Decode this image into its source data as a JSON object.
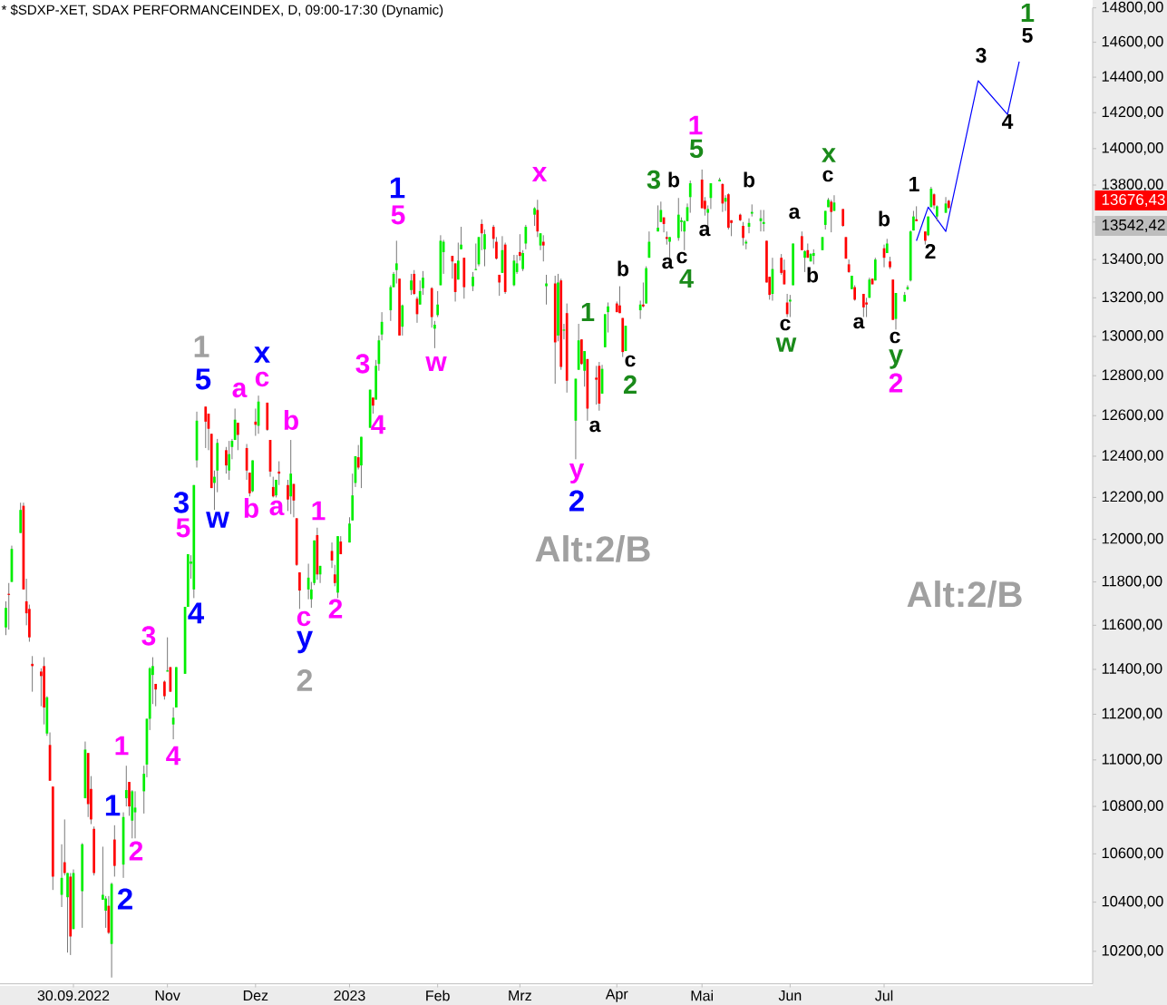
{
  "chart_data": {
    "type": "candlestick",
    "title": "* $SDXP-XET, SDAX PERFORMANCEINDEX, D, 09:00-17:30 (Dynamic)",
    "log": true,
    "xlim": [
      "2022-09-05",
      "2023-09-12"
    ],
    "xticks": [
      {
        "value": "2022-09-30",
        "label": "30.09.2022"
      },
      {
        "value": "2022-11-01",
        "label": "Nov"
      },
      {
        "value": "2022-12-01",
        "label": "Dez"
      },
      {
        "value": "2023-01-02",
        "label": "2023"
      },
      {
        "value": "2023-02-01",
        "label": "Feb"
      },
      {
        "value": "2023-03-01",
        "label": "Mrz"
      },
      {
        "value": "2023-04-03",
        "label": "Apr"
      },
      {
        "value": "2023-05-02",
        "label": "Mai"
      },
      {
        "value": "2023-06-01",
        "label": "Jun"
      },
      {
        "value": "2023-07-03",
        "label": "Jul"
      }
    ],
    "ylim": [
      10070,
      14800
    ],
    "yticks": [
      {
        "value": 10200,
        "label": "10200,00"
      },
      {
        "value": 10400,
        "label": "10400,00"
      },
      {
        "value": 10600,
        "label": "10600,00"
      },
      {
        "value": 10800,
        "label": "10800,00"
      },
      {
        "value": 11000,
        "label": "11000,00"
      },
      {
        "value": 11200,
        "label": "11200,00"
      },
      {
        "value": 11400,
        "label": "11400,00"
      },
      {
        "value": 11600,
        "label": "11600,00"
      },
      {
        "value": 11800,
        "label": "11800,00"
      },
      {
        "value": 12000,
        "label": "12000,00"
      },
      {
        "value": 12200,
        "label": "12200,00"
      },
      {
        "value": 12400,
        "label": "12400,00"
      },
      {
        "value": 12600,
        "label": "12600,00"
      },
      {
        "value": 12800,
        "label": "12800,00"
      },
      {
        "value": 13000,
        "label": "13000,00"
      },
      {
        "value": 13200,
        "label": "13200,00"
      },
      {
        "value": 13400,
        "label": "13400,00"
      },
      {
        "value": 13600,
        "label": null
      },
      {
        "value": 13800,
        "label": "13800,00"
      },
      {
        "value": 14000,
        "label": "14000,00"
      },
      {
        "value": 14200,
        "label": "14200,00"
      },
      {
        "value": 14400,
        "label": "14400,00"
      },
      {
        "value": 14600,
        "label": "14600,00"
      },
      {
        "value": 14800,
        "label": "14800,00"
      }
    ],
    "x": [
      "2022-09-07",
      "2022-09-08",
      "2022-09-09",
      "2022-09-12",
      "2022-09-13",
      "2022-09-14",
      "2022-09-15",
      "2022-09-16",
      "2022-09-19",
      "2022-09-20",
      "2022-09-21",
      "2022-09-22",
      "2022-09-23",
      "2022-09-26",
      "2022-09-27",
      "2022-09-28",
      "2022-09-29",
      "2022-09-30",
      "2022-10-03",
      "2022-10-04",
      "2022-10-05",
      "2022-10-06",
      "2022-10-07",
      "2022-10-10",
      "2022-10-11",
      "2022-10-12",
      "2022-10-13",
      "2022-10-14",
      "2022-10-17",
      "2022-10-18",
      "2022-10-19",
      "2022-10-20",
      "2022-10-21",
      "2022-10-24",
      "2022-10-25",
      "2022-10-26",
      "2022-10-27",
      "2022-10-28",
      "2022-10-31",
      "2022-11-01",
      "2022-11-02",
      "2022-11-03",
      "2022-11-04",
      "2022-11-07",
      "2022-11-08",
      "2022-11-09",
      "2022-11-10",
      "2022-11-11",
      "2022-11-14",
      "2022-11-15",
      "2022-11-16",
      "2022-11-17",
      "2022-11-18",
      "2022-11-21",
      "2022-11-22",
      "2022-11-23",
      "2022-11-24",
      "2022-11-25",
      "2022-11-28",
      "2022-11-29",
      "2022-11-30",
      "2022-12-01",
      "2022-12-02",
      "2022-12-05",
      "2022-12-06",
      "2022-12-07",
      "2022-12-08",
      "2022-12-09",
      "2022-12-12",
      "2022-12-13",
      "2022-12-14",
      "2022-12-15",
      "2022-12-16",
      "2022-12-19",
      "2022-12-20",
      "2022-12-21",
      "2022-12-22",
      "2022-12-23",
      "2022-12-27",
      "2022-12-28",
      "2022-12-29",
      "2022-12-30",
      "2023-01-02",
      "2023-01-03",
      "2023-01-04",
      "2023-01-05",
      "2023-01-06",
      "2023-01-09",
      "2023-01-10",
      "2023-01-11",
      "2023-01-12",
      "2023-01-13",
      "2023-01-16",
      "2023-01-17",
      "2023-01-18",
      "2023-01-19",
      "2023-01-20",
      "2023-01-23",
      "2023-01-24",
      "2023-01-25",
      "2023-01-26",
      "2023-01-27",
      "2023-01-30",
      "2023-01-31",
      "2023-02-01",
      "2023-02-02",
      "2023-02-03",
      "2023-02-06",
      "2023-02-07",
      "2023-02-08",
      "2023-02-09",
      "2023-02-10",
      "2023-02-13",
      "2023-02-14",
      "2023-02-15",
      "2023-02-16",
      "2023-02-17",
      "2023-02-20",
      "2023-02-21",
      "2023-02-22",
      "2023-02-23",
      "2023-02-24",
      "2023-02-27",
      "2023-02-28",
      "2023-03-01",
      "2023-03-02",
      "2023-03-03",
      "2023-03-06",
      "2023-03-07",
      "2023-03-08",
      "2023-03-09",
      "2023-03-10",
      "2023-03-13",
      "2023-03-14",
      "2023-03-15",
      "2023-03-16",
      "2023-03-17",
      "2023-03-20",
      "2023-03-21",
      "2023-03-22",
      "2023-03-23",
      "2023-03-24",
      "2023-03-27",
      "2023-03-28",
      "2023-03-29",
      "2023-03-30",
      "2023-03-31",
      "2023-04-03",
      "2023-04-04",
      "2023-04-05",
      "2023-04-06",
      "2023-04-11",
      "2023-04-12",
      "2023-04-13",
      "2023-04-14",
      "2023-04-17",
      "2023-04-18",
      "2023-04-19",
      "2023-04-20",
      "2023-04-21",
      "2023-04-24",
      "2023-04-25",
      "2023-04-26",
      "2023-04-27",
      "2023-04-28",
      "2023-05-02",
      "2023-05-03",
      "2023-05-04",
      "2023-05-05",
      "2023-05-08",
      "2023-05-09",
      "2023-05-10",
      "2023-05-11",
      "2023-05-12",
      "2023-05-15",
      "2023-05-16",
      "2023-05-17",
      "2023-05-18",
      "2023-05-19",
      "2023-05-22",
      "2023-05-23",
      "2023-05-24",
      "2023-05-25",
      "2023-05-26",
      "2023-05-29",
      "2023-05-30",
      "2023-05-31",
      "2023-06-01",
      "2023-06-02",
      "2023-06-05",
      "2023-06-06",
      "2023-06-07",
      "2023-06-08",
      "2023-06-09",
      "2023-06-12",
      "2023-06-13",
      "2023-06-14",
      "2023-06-15",
      "2023-06-16",
      "2023-06-19",
      "2023-06-20",
      "2023-06-21",
      "2023-06-22",
      "2023-06-23",
      "2023-06-26",
      "2023-06-27",
      "2023-06-28",
      "2023-06-29",
      "2023-06-30",
      "2023-07-03",
      "2023-07-04",
      "2023-07-05",
      "2023-07-06",
      "2023-07-07",
      "2023-07-10",
      "2023-07-11",
      "2023-07-12",
      "2023-07-13",
      "2023-07-14",
      "2023-07-17",
      "2023-07-18",
      "2023-07-19",
      "2023-07-20",
      "2023-07-21",
      "2023-07-24",
      "2023-07-25"
    ],
    "ohlc": [
      [
        11590,
        11710,
        11555,
        11680
      ],
      [
        11745,
        11795,
        11580,
        11740
      ],
      [
        11800,
        11970,
        11800,
        11955
      ],
      [
        12030,
        12175,
        12030,
        12140
      ],
      [
        12160,
        12175,
        11765,
        11765
      ],
      [
        11710,
        11815,
        11600,
        11655
      ],
      [
        11675,
        11695,
        11525,
        11545
      ],
      [
        11425,
        11460,
        11300,
        11415
      ],
      [
        11390,
        11405,
        11235,
        11370
      ],
      [
        11415,
        11455,
        11155,
        11230
      ],
      [
        11115,
        11280,
        11105,
        11275
      ],
      [
        11065,
        11120,
        10910,
        10910
      ],
      [
        10885,
        10885,
        10450,
        10505
      ],
      [
        10430,
        10640,
        10380,
        10500
      ],
      [
        10565,
        10745,
        10510,
        10520
      ],
      [
        10420,
        10520,
        10195,
        10520
      ],
      [
        10505,
        10520,
        10185,
        10260
      ],
      [
        10290,
        10535,
        10290,
        10520
      ],
      [
        10445,
        10645,
        10295,
        10640
      ],
      [
        10835,
        11080,
        10835,
        11045
      ],
      [
        11030,
        11030,
        10755,
        10810
      ],
      [
        10875,
        10930,
        10725,
        10745
      ],
      [
        10705,
        10715,
        10510,
        10520
      ],
      [
        10410,
        10630,
        10410,
        10430
      ],
      [
        10365,
        10425,
        10295,
        10415
      ],
      [
        10385,
        10425,
        10270,
        10275
      ],
      [
        10230,
        10480,
        10095,
        10475
      ],
      [
        10660,
        10720,
        10505,
        10550
      ],
      [
        10555,
        10775,
        10500,
        10755
      ],
      [
        10835,
        10975,
        10800,
        10870
      ],
      [
        10905,
        10905,
        10760,
        10800
      ],
      [
        10740,
        10870,
        10665,
        10865
      ],
      [
        10775,
        10865,
        10665,
        10795
      ],
      [
        10865,
        10975,
        10770,
        10940
      ],
      [
        10980,
        11180,
        10925,
        11180
      ],
      [
        11180,
        11410,
        11130,
        11405
      ],
      [
        11375,
        11455,
        11245,
        11415
      ],
      [
        11335,
        11335,
        11235,
        11310
      ],
      [
        11345,
        11350,
        11265,
        11280
      ],
      [
        11390,
        11545,
        11390,
        11395
      ],
      [
        11410,
        11410,
        11300,
        11300
      ],
      [
        11155,
        11230,
        11090,
        11185
      ],
      [
        11230,
        11410,
        11230,
        11410
      ],
      [
        11380,
        11685,
        11380,
        11685
      ],
      [
        11685,
        11930,
        11685,
        11930
      ],
      [
        11885,
        11925,
        11815,
        11895
      ],
      [
        11765,
        12260,
        11725,
        12260
      ],
      [
        12380,
        12620,
        12345,
        12575
      ],
      [
        12645,
        12645,
        12440,
        12570
      ],
      [
        12610,
        12610,
        12430,
        12535
      ],
      [
        12510,
        12510,
        12245,
        12245
      ],
      [
        12270,
        12330,
        12140,
        12300
      ],
      [
        12330,
        12485,
        12225,
        12465
      ],
      [
        12430,
        12445,
        12315,
        12355
      ],
      [
        12330,
        12475,
        12285,
        12410
      ],
      [
        12445,
        12485,
        12385,
        12475
      ],
      [
        12480,
        12635,
        12480,
        12580
      ],
      [
        12565,
        12565,
        12430,
        12505
      ],
      [
        12440,
        12460,
        12285,
        12330
      ],
      [
        12320,
        12320,
        12205,
        12220
      ],
      [
        12230,
        12380,
        12225,
        12380
      ],
      [
        12570,
        12635,
        12500,
        12555
      ],
      [
        12550,
        12700,
        12510,
        12670
      ],
      [
        12665,
        12665,
        12525,
        12530
      ],
      [
        12480,
        12480,
        12300,
        12325
      ],
      [
        12250,
        12300,
        12200,
        12205
      ],
      [
        12210,
        12285,
        12200,
        12285
      ],
      [
        12325,
        12375,
        12260,
        12315
      ],
      [
        12260,
        12285,
        12135,
        12190
      ],
      [
        12205,
        12480,
        12120,
        12315
      ],
      [
        12265,
        12265,
        12105,
        12185
      ],
      [
        12100,
        12100,
        11875,
        11880
      ],
      [
        11845,
        11845,
        11675,
        11760
      ],
      [
        11765,
        11885,
        11720,
        11820
      ],
      [
        11720,
        11800,
        11680,
        11765
      ],
      [
        11795,
        11995,
        11785,
        11995
      ],
      [
        12020,
        12055,
        11810,
        11835
      ],
      [
        11835,
        11875,
        11795,
        11875
      ],
      [
        11945,
        11985,
        11865,
        11900
      ],
      [
        11835,
        11880,
        11780,
        11795
      ],
      [
        11750,
        12015,
        11725,
        12015
      ],
      [
        11990,
        12015,
        11930,
        11930
      ],
      [
        11985,
        12105,
        11985,
        12075
      ],
      [
        12090,
        12315,
        12090,
        12210
      ],
      [
        12270,
        12400,
        12250,
        12400
      ],
      [
        12395,
        12455,
        12335,
        12345
      ],
      [
        12355,
        12495,
        12245,
        12495
      ],
      [
        12540,
        12730,
        12540,
        12730
      ],
      [
        12690,
        12690,
        12610,
        12650
      ],
      [
        12680,
        12880,
        12680,
        12850
      ],
      [
        12860,
        13005,
        12825,
        12980
      ],
      [
        13010,
        13125,
        12980,
        13075
      ],
      [
        13135,
        13265,
        13080,
        13255
      ],
      [
        13255,
        13335,
        13255,
        13325
      ],
      [
        13345,
        13500,
        13275,
        13380
      ],
      [
        13300,
        13300,
        13005,
        13005
      ],
      [
        13050,
        13165,
        13005,
        13160
      ],
      [
        13240,
        13325,
        13215,
        13290
      ],
      [
        13325,
        13345,
        13215,
        13220
      ],
      [
        13195,
        13205,
        13070,
        13115
      ],
      [
        13165,
        13290,
        13165,
        13235
      ],
      [
        13250,
        13340,
        13215,
        13305
      ],
      [
        13250,
        13255,
        13045,
        13100
      ],
      [
        13040,
        13080,
        12940,
        13060
      ],
      [
        13110,
        13235,
        13100,
        13165
      ],
      [
        13265,
        13530,
        13265,
        13500
      ],
      [
        13440,
        13505,
        13325,
        13495
      ],
      [
        13420,
        13420,
        13300,
        13390
      ],
      [
        13380,
        13380,
        13180,
        13230
      ],
      [
        13295,
        13490,
        13295,
        13395
      ],
      [
        13455,
        13575,
        13455,
        13480
      ],
      [
        13410,
        13410,
        13195,
        13255
      ],
      [
        13260,
        13335,
        13235,
        13310
      ],
      [
        13345,
        13485,
        13345,
        13350
      ],
      [
        13375,
        13520,
        13365,
        13520
      ],
      [
        13590,
        13615,
        13450,
        13540
      ],
      [
        13455,
        13560,
        13365,
        13535
      ],
      [
        13575,
        13585,
        13460,
        13510
      ],
      [
        13495,
        13520,
        13400,
        13405
      ],
      [
        13320,
        13320,
        13210,
        13280
      ],
      [
        13330,
        13525,
        13330,
        13450
      ],
      [
        13480,
        13490,
        13220,
        13230
      ],
      [
        13265,
        13425,
        13260,
        13395
      ],
      [
        13335,
        13425,
        13325,
        13380
      ],
      [
        13440,
        13535,
        13395,
        13420
      ],
      [
        13350,
        13450,
        13340,
        13435
      ],
      [
        13485,
        13585,
        13455,
        13575
      ],
      [
        13640,
        13680,
        13580,
        13675
      ],
      [
        13665,
        13720,
        13520,
        13550
      ],
      [
        13475,
        13540,
        13450,
        13540
      ],
      [
        13495,
        13530,
        13390,
        13475
      ],
      [
        13260,
        13320,
        13165,
        13275
      ],
      [
        13275,
        13315,
        12760,
        12970
      ],
      [
        13005,
        13325,
        12975,
        13280
      ],
      [
        13290,
        13300,
        12830,
        12845
      ],
      [
        13030,
        13065,
        12985,
        13035
      ],
      [
        13120,
        13170,
        12715,
        12775
      ],
      [
        12575,
        12785,
        12385,
        12785
      ],
      [
        12830,
        13065,
        12830,
        12980
      ],
      [
        12985,
        12985,
        12855,
        12860
      ],
      [
        12825,
        12925,
        12745,
        12925
      ],
      [
        12885,
        12885,
        12575,
        12635
      ],
      [
        12790,
        12850,
        12655,
        12780
      ],
      [
        12850,
        12870,
        12625,
        12660
      ],
      [
        12710,
        12855,
        12710,
        12835
      ],
      [
        12945,
        13115,
        12945,
        13115
      ],
      [
        13125,
        13175,
        13020,
        13155
      ],
      [
        13170,
        13180,
        13125,
        13125
      ],
      [
        13160,
        13260,
        13120,
        13120
      ],
      [
        13095,
        13095,
        12895,
        12920
      ],
      [
        12925,
        13055,
        12925,
        13055
      ],
      [
        13135,
        13185,
        13090,
        13165
      ],
      [
        13165,
        13280,
        13150,
        13155
      ],
      [
        13170,
        13365,
        13170,
        13355
      ],
      [
        13410,
        13550,
        13410,
        13495
      ],
      [
        13550,
        13690,
        13550,
        13570
      ],
      [
        13600,
        13710,
        13600,
        13665
      ],
      [
        13625,
        13625,
        13545,
        13590
      ],
      [
        13520,
        13550,
        13480,
        13510
      ],
      [
        13495,
        13520,
        13410,
        13520
      ],
      [
        13515,
        13730,
        13500,
        13640
      ],
      [
        13600,
        13625,
        13550,
        13610
      ],
      [
        13550,
        13610,
        13450,
        13605
      ],
      [
        13605,
        13700,
        13605,
        13680
      ],
      [
        13735,
        13825,
        13650,
        13810
      ],
      [
        13830,
        13885,
        13675,
        13675
      ],
      [
        13715,
        13735,
        13635,
        13670
      ],
      [
        13650,
        13690,
        13575,
        13670
      ],
      [
        13730,
        13810,
        13670,
        13810
      ],
      [
        13820,
        13840,
        13820,
        13830
      ],
      [
        13805,
        13810,
        13655,
        13700
      ],
      [
        13710,
        13745,
        13660,
        13730
      ],
      [
        13750,
        13755,
        13560,
        13570
      ],
      [
        13610,
        13610,
        13525,
        13595
      ],
      [
        13640,
        13645,
        13605,
        13610
      ],
      [
        13580,
        13600,
        13475,
        13515
      ],
      [
        13485,
        13505,
        13455,
        13495
      ],
      [
        13575,
        13620,
        13540,
        13595
      ],
      [
        13645,
        13695,
        13630,
        13655
      ],
      [
        13605,
        13665,
        13550,
        13620
      ],
      [
        13590,
        13665,
        13550,
        13600
      ],
      [
        13500,
        13500,
        13280,
        13280
      ],
      [
        13310,
        13310,
        13190,
        13215
      ],
      [
        13220,
        13410,
        13185,
        13350
      ],
      [
        13410,
        13430,
        13320,
        13330
      ],
      [
        13345,
        13400,
        13270,
        13270
      ],
      [
        13175,
        13220,
        13100,
        13115
      ],
      [
        13180,
        13215,
        13100,
        13190
      ],
      [
        13265,
        13485,
        13265,
        13485
      ],
      [
        13525,
        13550,
        13450,
        13450
      ],
      [
        13410,
        13450,
        13335,
        13445
      ],
      [
        13450,
        13485,
        13410,
        13410
      ],
      [
        13390,
        13435,
        13390,
        13430
      ],
      [
        13420,
        13455,
        13375,
        13435
      ],
      [
        13450,
        13520,
        13450,
        13520
      ],
      [
        13585,
        13660,
        13560,
        13660
      ],
      [
        13680,
        13730,
        13680,
        13720
      ],
      [
        13710,
        13720,
        13545,
        13655
      ],
      [
        13660,
        13745,
        13660,
        13705
      ],
      [
        13670,
        13670,
        13575,
        13580
      ],
      [
        13520,
        13520,
        13405,
        13405
      ],
      [
        13375,
        13400,
        13330,
        13335
      ],
      [
        13245,
        13315,
        13245,
        13315
      ],
      [
        13255,
        13265,
        13185,
        13190
      ],
      [
        13220,
        13220,
        13100,
        13150
      ],
      [
        13175,
        13200,
        13100,
        13165
      ],
      [
        13200,
        13305,
        13200,
        13295
      ],
      [
        13300,
        13300,
        13270,
        13270
      ],
      [
        13290,
        13410,
        13290,
        13400
      ],
      [
        13460,
        13480,
        13360,
        13410
      ],
      [
        13435,
        13510,
        13435,
        13485
      ],
      [
        13390,
        13415,
        13350,
        13360
      ],
      [
        13295,
        13295,
        13085,
        13085
      ],
      [
        13090,
        13225,
        13035,
        13225
      ],
      [
        13180,
        13230,
        13180,
        13215
      ],
      [
        13245,
        13265,
        13240,
        13255
      ],
      [
        13290,
        13555,
        13285,
        13550
      ],
      [
        13555,
        13660,
        13555,
        13630
      ],
      [
        13615,
        13685,
        13605,
        13605
      ],
      [
        13550,
        13550,
        13480,
        13500
      ],
      [
        13530,
        13630,
        13525,
        13630
      ],
      [
        13680,
        13790,
        13680,
        13780
      ],
      [
        13750,
        13755,
        13670,
        13690
      ],
      [
        13630,
        13690,
        13605,
        13685
      ],
      [
        13650,
        13735,
        13650,
        13700
      ],
      [
        13715,
        13720,
        13670,
        13676.43
      ]
    ],
    "colors": [
      "#00ee00",
      "#ff0000",
      "#00ee00",
      "#00ee00",
      "#ff0000",
      "#ff0000",
      "#ff0000",
      "#ff0000",
      "#ff0000",
      "#ff0000",
      "#00ee00",
      "#ff0000",
      "#ff0000",
      "#00ee00",
      "#ff0000",
      "#00ee00",
      "#ff0000",
      "#00ee00",
      "#00ee00",
      "#00ee00",
      "#ff0000",
      "#ff0000",
      "#ff0000",
      "#00ee00",
      "#00ee00",
      "#ff0000",
      "#00ee00",
      "#ff0000",
      "#00ee00",
      "#00ee00",
      "#ff0000",
      "#00ee00",
      "#00ee00",
      "#00ee00",
      "#00ee00",
      "#00ee00",
      "#00ee00",
      "#ff0000",
      "#ff0000",
      "#00ee00",
      "#ff0000",
      "#00ee00",
      "#00ee00",
      "#00ee00",
      "#00ee00",
      "#00ee00",
      "#00ee00",
      "#00ee00",
      "#ff0000",
      "#ff0000",
      "#ff0000",
      "#00ee00",
      "#00ee00",
      "#ff0000",
      "#00ee00",
      "#00ee00",
      "#00ee00",
      "#ff0000",
      "#ff0000",
      "#ff0000",
      "#00ee00",
      "#ff0000",
      "#00ee00",
      "#ff0000",
      "#ff0000",
      "#ff0000",
      "#00ee00",
      "#ff0000",
      "#ff0000",
      "#00ee00",
      "#ff0000",
      "#ff0000",
      "#ff0000",
      "#00ee00",
      "#00ee00",
      "#00ee00",
      "#ff0000",
      "#00ee00",
      "#ff0000",
      "#ff0000",
      "#00ee00",
      "#ff0000",
      "#00ee00",
      "#00ee00",
      "#00ee00",
      "#ff0000",
      "#00ee00",
      "#00ee00",
      "#ff0000",
      "#00ee00",
      "#00ee00",
      "#00ee00",
      "#00ee00",
      "#00ee00",
      "#00ee00",
      "#ff0000",
      "#00ee00",
      "#00ee00",
      "#ff0000",
      "#ff0000",
      "#00ee00",
      "#00ee00",
      "#ff0000",
      "#00ee00",
      "#00ee00",
      "#00ee00",
      "#00ee00",
      "#ff0000",
      "#ff0000",
      "#00ee00",
      "#00ee00",
      "#ff0000",
      "#00ee00",
      "#00ee00",
      "#00ee00",
      "#ff0000",
      "#00ee00",
      "#ff0000",
      "#ff0000",
      "#ff0000",
      "#00ee00",
      "#ff0000",
      "#00ee00",
      "#00ee00",
      "#ff0000",
      "#00ee00",
      "#00ee00",
      "#00ee00",
      "#ff0000",
      "#00ee00",
      "#ff0000",
      "#00ee00",
      "#ff0000",
      "#00ee00",
      "#ff0000",
      "#00ee00",
      "#ff0000",
      "#00ee00",
      "#00ee00",
      "#ff0000",
      "#00ee00",
      "#ff0000",
      "#ff0000",
      "#ff0000",
      "#00ee00",
      "#00ee00",
      "#00ee00",
      "#ff0000",
      "#ff0000",
      "#ff0000",
      "#00ee00",
      "#00ee00",
      "#ff0000",
      "#00ee00",
      "#00ee00",
      "#00ee00",
      "#00ee00",
      "#ff0000",
      "#ff0000",
      "#00ee00",
      "#00ee00",
      "#00ee00",
      "#00ee00",
      "#00ee00",
      "#00ee00",
      "#ff0000",
      "#ff0000",
      "#00ee00",
      "#00ee00",
      "#00ee00",
      "#ff0000",
      "#00ee00",
      "#ff0000",
      "#ff0000",
      "#ff0000",
      "#ff0000",
      "#00ee00",
      "#00ee00",
      "#00ee00",
      "#00ee00",
      "#00ee00",
      "#ff0000",
      "#ff0000",
      "#00ee00",
      "#ff0000",
      "#ff0000",
      "#ff0000",
      "#00ee00",
      "#00ee00",
      "#ff0000",
      "#00ee00",
      "#ff0000",
      "#00ee00",
      "#00ee00",
      "#00ee00",
      "#00ee00",
      "#00ee00",
      "#ff0000",
      "#00ee00",
      "#ff0000",
      "#ff0000",
      "#ff0000",
      "#00ee00",
      "#ff0000",
      "#ff0000",
      "#ff0000",
      "#00ee00",
      "#ff0000",
      "#00ee00",
      "#ff0000",
      "#00ee00",
      "#ff0000",
      "#ff0000",
      "#00ee00",
      "#00ee00",
      "#00ee00",
      "#00ee00",
      "#00ee00",
      "#ff0000",
      "#ff0000",
      "#00ee00",
      "#00ee00",
      "#ff0000",
      "#00ee00",
      "#00ee00",
      "#ff0000"
    ],
    "series": [
      {
        "type": "line",
        "color": "#0000ff",
        "x": [
          "2023-07-14",
          "2023-07-18",
          "2023-07-24",
          "2023-08-04",
          "2023-08-14",
          "2023-08-18"
        ],
        "values": [
          13500,
          13680,
          13550,
          14380,
          14190,
          14490
        ]
      }
    ],
    "annotations": [
      "1",
      "5",
      "x",
      "c",
      "a",
      "b",
      "3",
      "5",
      "w",
      "b",
      "a",
      "1",
      "c",
      "y",
      "2",
      "2",
      "4",
      "3",
      "4",
      "1",
      "1",
      "2",
      "2",
      "3",
      "4",
      "1",
      "5",
      "w",
      "x",
      "y",
      "2",
      "Alt:2/B",
      "a",
      "1",
      "b",
      "c",
      "2",
      "3",
      "b",
      "a",
      "c",
      "4",
      "a",
      "1",
      "5",
      "b",
      "a",
      "b",
      "c",
      "w",
      "x",
      "c",
      "a",
      "b",
      "c",
      "y",
      "2",
      "1",
      "2",
      "3",
      "4",
      "1",
      "5",
      "Alt:2/B",
      "13676,43",
      "13542,42"
    ]
  }
}
